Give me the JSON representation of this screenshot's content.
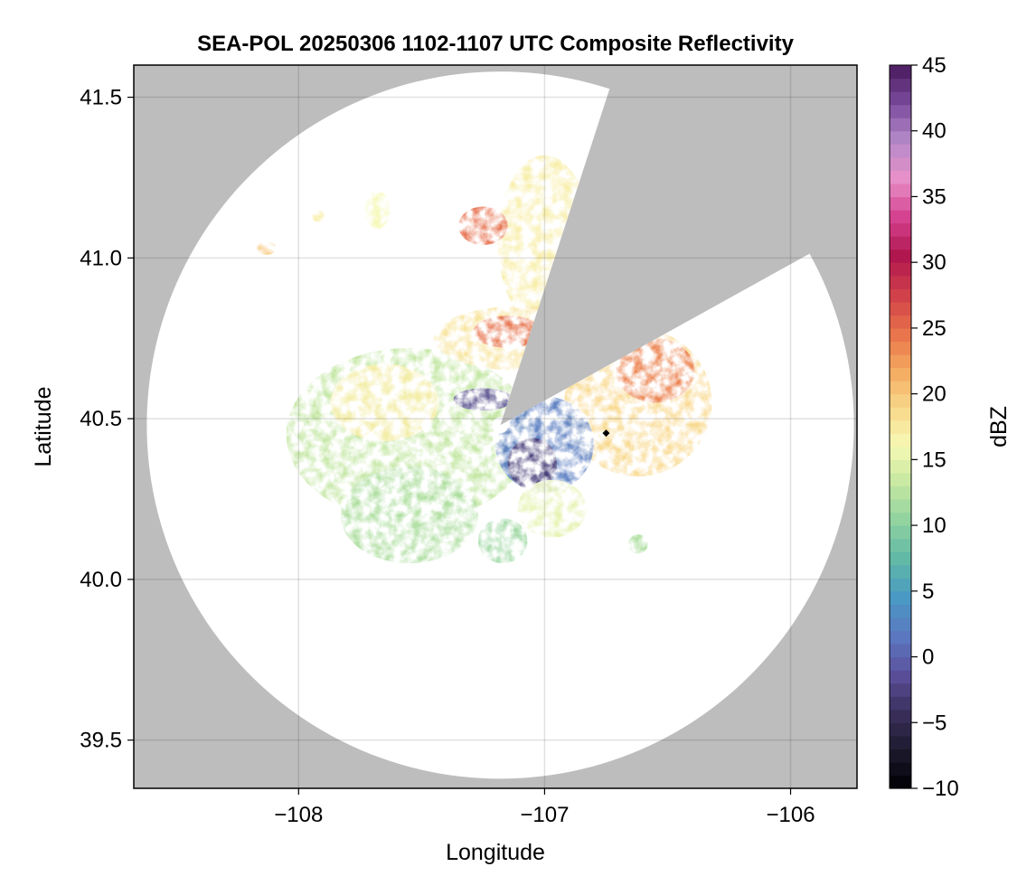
{
  "chart_data": {
    "type": "heatmap",
    "title": "SEA-POL 20250306 1102-1107 UTC Composite Reflectivity",
    "xlabel": "Longitude",
    "ylabel": "Latitude",
    "xlim": [
      -108.67,
      -105.73
    ],
    "ylim": [
      39.35,
      41.6
    ],
    "xticks": [
      -108,
      -107,
      -106
    ],
    "xtick_labels": [
      "−108",
      "−107",
      "−106"
    ],
    "yticks": [
      39.5,
      40.0,
      40.5,
      41.0,
      41.5
    ],
    "ytick_labels": [
      "39.5",
      "40.0",
      "40.5",
      "41.0",
      "41.5"
    ],
    "grid": true,
    "background_color": "#bdbdbd",
    "radar": {
      "center_lon": -107.18,
      "center_lat": 40.48,
      "range_deg_lat": 1.1,
      "blocked_sector_azimuths_deg": [
        18,
        61
      ]
    },
    "marker": {
      "lon": -106.75,
      "lat": 40.455,
      "shape": "diamond",
      "color": "#000000"
    },
    "colorbar": {
      "label": "dBZ",
      "min": -10,
      "max": 45,
      "ticks": [
        -10,
        -5,
        0,
        5,
        10,
        15,
        20,
        25,
        30,
        35,
        40,
        45
      ],
      "tick_labels": [
        "−10",
        "−5",
        "0",
        "5",
        "10",
        "15",
        "20",
        "25",
        "30",
        "35",
        "40",
        "45"
      ],
      "levels": 55,
      "colormap": [
        "#000004",
        "#1d1a2e",
        "#3a2f5b",
        "#5b4f9c",
        "#5b78c0",
        "#4a98c4",
        "#5fb8a6",
        "#8dd1a0",
        "#c4e7a0",
        "#f6f9b4",
        "#f8d88a",
        "#f4a95f",
        "#e8704a",
        "#cf3f4a",
        "#b0174f",
        "#d4418e",
        "#e890c8",
        "#b58ac9",
        "#7b4b9c",
        "#4a1a5e"
      ]
    },
    "echo_regions": [
      {
        "name": "west-mass",
        "lon": -107.55,
        "lat": 40.45,
        "rx": 0.5,
        "ry": 0.27,
        "dbz": 13
      },
      {
        "name": "west-core",
        "lon": -107.65,
        "lat": 40.55,
        "rx": 0.22,
        "ry": 0.12,
        "dbz": 17
      },
      {
        "name": "southwest-lobe",
        "lon": -107.55,
        "lat": 40.2,
        "rx": 0.28,
        "ry": 0.15,
        "dbz": 12
      },
      {
        "name": "north-plume",
        "lon": -107.0,
        "lat": 41.05,
        "rx": 0.19,
        "ry": 0.27,
        "dbz": 17
      },
      {
        "name": "north-core",
        "lon": -107.25,
        "lat": 41.1,
        "rx": 0.1,
        "ry": 0.06,
        "dbz": 25
      },
      {
        "name": "north-plume-lower",
        "lon": -107.1,
        "lat": 40.75,
        "rx": 0.35,
        "ry": 0.1,
        "dbz": 18
      },
      {
        "name": "north-plume-core",
        "lon": -107.15,
        "lat": 40.77,
        "rx": 0.14,
        "ry": 0.05,
        "dbz": 25
      },
      {
        "name": "east-mass",
        "lon": -106.62,
        "lat": 40.55,
        "rx": 0.3,
        "ry": 0.23,
        "dbz": 19
      },
      {
        "name": "east-core",
        "lon": -106.55,
        "lat": 40.65,
        "rx": 0.16,
        "ry": 0.1,
        "dbz": 24
      },
      {
        "name": "central-low",
        "lon": -107.0,
        "lat": 40.42,
        "rx": 0.2,
        "ry": 0.15,
        "dbz": 2
      },
      {
        "name": "central-deep",
        "lon": -107.05,
        "lat": 40.36,
        "rx": 0.1,
        "ry": 0.08,
        "dbz": -3
      },
      {
        "name": "near-radar-low",
        "lon": -107.25,
        "lat": 40.56,
        "rx": 0.12,
        "ry": 0.035,
        "dbz": -2
      },
      {
        "name": "south-central",
        "lon": -106.97,
        "lat": 40.22,
        "rx": 0.14,
        "ry": 0.09,
        "dbz": 15
      },
      {
        "name": "south-patch",
        "lon": -107.17,
        "lat": 40.12,
        "rx": 0.1,
        "ry": 0.07,
        "dbz": 11
      },
      {
        "name": "northwest-cell",
        "lon": -108.13,
        "lat": 41.03,
        "rx": 0.04,
        "ry": 0.02,
        "dbz": 20
      },
      {
        "name": "northwest-cell-2",
        "lon": -107.92,
        "lat": 41.13,
        "rx": 0.025,
        "ry": 0.018,
        "dbz": 17
      },
      {
        "name": "north-small-cells",
        "lon": -107.68,
        "lat": 41.15,
        "rx": 0.05,
        "ry": 0.06,
        "dbz": 16
      },
      {
        "name": "east-small-cell",
        "lon": -106.62,
        "lat": 40.11,
        "rx": 0.04,
        "ry": 0.03,
        "dbz": 12
      }
    ]
  }
}
